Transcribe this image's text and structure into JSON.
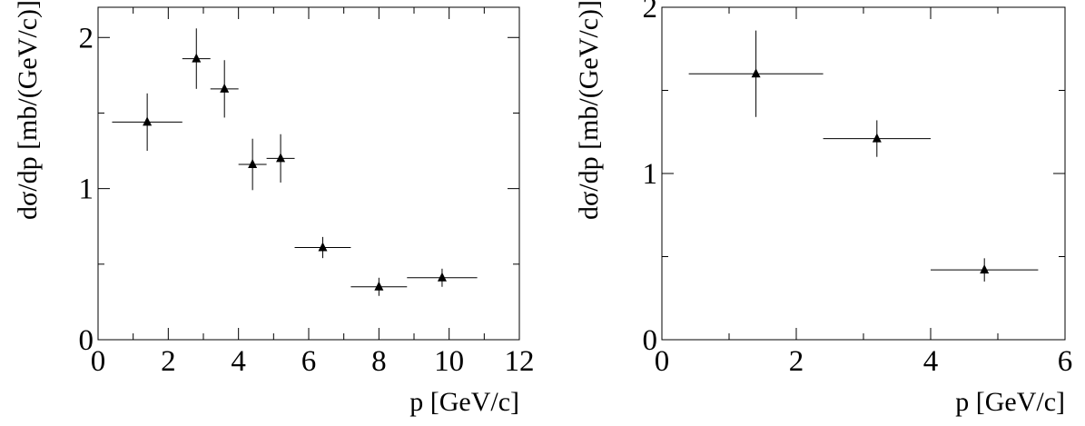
{
  "chart_data": [
    {
      "type": "scatter",
      "title": "",
      "xlabel": "p [GeV/c]",
      "ylabel": "dσ/dp [mb/(GeV/c)]",
      "xlim": [
        0,
        12
      ],
      "ylim": [
        0,
        2.2
      ],
      "xticks": [
        0,
        2,
        4,
        6,
        8,
        10,
        12
      ],
      "yticks": [
        0,
        1,
        2
      ],
      "grid": false,
      "marker": "triangle",
      "series": [
        {
          "points": [
            {
              "x": 1.4,
              "y": 1.44,
              "xerr": 1.0,
              "yerr": 0.19
            },
            {
              "x": 2.8,
              "y": 1.86,
              "xerr": 0.4,
              "yerr": 0.2
            },
            {
              "x": 3.6,
              "y": 1.66,
              "xerr": 0.4,
              "yerr": 0.19
            },
            {
              "x": 4.4,
              "y": 1.16,
              "xerr": 0.4,
              "yerr": 0.17
            },
            {
              "x": 5.2,
              "y": 1.2,
              "xerr": 0.4,
              "yerr": 0.16
            },
            {
              "x": 6.4,
              "y": 0.61,
              "xerr": 0.8,
              "yerr": 0.07
            },
            {
              "x": 8.0,
              "y": 0.35,
              "xerr": 0.8,
              "yerr": 0.06
            },
            {
              "x": 9.8,
              "y": 0.41,
              "xerr": 1.0,
              "yerr": 0.06
            }
          ]
        }
      ]
    },
    {
      "type": "scatter",
      "title": "",
      "xlabel": "p [GeV/c]",
      "ylabel": "dσ/dp [mb/(GeV/c)]",
      "xlim": [
        0,
        6
      ],
      "ylim": [
        0,
        2
      ],
      "xticks": [
        0,
        2,
        4,
        6
      ],
      "yticks": [
        0,
        1,
        2
      ],
      "grid": false,
      "marker": "triangle",
      "series": [
        {
          "points": [
            {
              "x": 1.4,
              "y": 1.6,
              "xerr": 1.0,
              "yerr": 0.26
            },
            {
              "x": 3.2,
              "y": 1.21,
              "xerr": 0.8,
              "yerr": 0.11
            },
            {
              "x": 4.8,
              "y": 0.42,
              "xerr": 0.8,
              "yerr": 0.07
            }
          ]
        }
      ]
    }
  ]
}
